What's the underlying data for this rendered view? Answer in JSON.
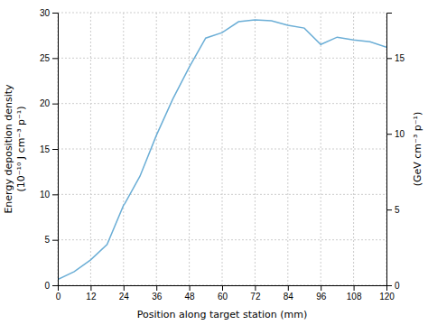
{
  "chart_data": {
    "type": "line",
    "xlabel": "Position along target station (mm)",
    "ylabel": "Energy deposition density\n(10⁻¹⁰ J cm⁻³ p⁻¹)",
    "y2label": "(GeV cm⁻³ p⁻¹)",
    "x": [
      0,
      6,
      12,
      18,
      24,
      24.5,
      30,
      36,
      42,
      48,
      54,
      60,
      66,
      72,
      78,
      84,
      90,
      96,
      102,
      108,
      114,
      120
    ],
    "values": [
      0.65,
      1.5,
      2.8,
      4.5,
      8.8,
      9.0,
      12.0,
      16.5,
      20.5,
      24.0,
      27.2,
      27.8,
      29.0,
      29.2,
      29.1,
      28.6,
      28.3,
      26.5,
      27.3,
      27.0,
      26.8,
      26.2
    ],
    "color": "#6baed6",
    "xlim": [
      0,
      120
    ],
    "ylim": [
      0,
      30
    ],
    "y2lim": [
      0,
      18.0
    ],
    "xticks": [
      0,
      12,
      24,
      36,
      48,
      60,
      72,
      84,
      96,
      108,
      120
    ],
    "yticks": [
      0,
      5,
      10,
      15,
      20,
      25,
      30
    ],
    "y2ticks": [
      0,
      5,
      10,
      15
    ],
    "grid": true
  }
}
